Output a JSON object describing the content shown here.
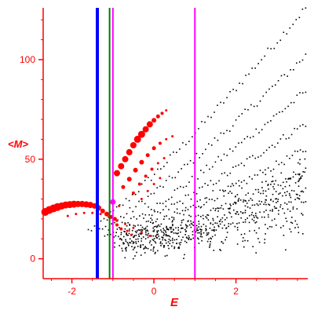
{
  "chart_data": {
    "type": "scatter",
    "title": "",
    "xlabel": "E",
    "ylabel": "<M>",
    "xlim": [
      -2.7,
      3.75
    ],
    "ylim": [
      -10,
      126
    ],
    "x_ticks": [
      -2,
      0,
      2
    ],
    "x_tick_labels": [
      "-2",
      "0",
      "2"
    ],
    "y_ticks": [
      0,
      50,
      100
    ],
    "y_tick_labels": [
      "0",
      "50",
      "100"
    ],
    "grid": false,
    "legend": "none",
    "colors": {
      "axis": "#ff0000",
      "points_black": "#000000",
      "points_red": "#ff0000",
      "line_blue": "#0000ff",
      "line_green": "#007a00",
      "line_magenta": "#ff00ff"
    },
    "vertical_lines": [
      {
        "x": -1.38,
        "color": "#0000ff",
        "width": "thick"
      },
      {
        "x": -1.08,
        "color": "#007a00",
        "width": "thin"
      },
      {
        "x": -1.0,
        "color": "#ff00ff",
        "width": "thin"
      },
      {
        "x": 1.0,
        "color": "#ff00ff",
        "width": "thin"
      }
    ],
    "marker_point": {
      "x": -1.0,
      "y": 28.5,
      "color": "#ff00ff"
    },
    "red_series": [
      {
        "x": -2.65,
        "y": 23.5,
        "s": 5
      },
      {
        "x": -2.55,
        "y": 24.5,
        "s": 5
      },
      {
        "x": -2.45,
        "y": 25.3,
        "s": 5
      },
      {
        "x": -2.35,
        "y": 26.0,
        "s": 5
      },
      {
        "x": -2.25,
        "y": 26.5,
        "s": 4.5
      },
      {
        "x": -2.15,
        "y": 27.0,
        "s": 4.5
      },
      {
        "x": -2.05,
        "y": 27.2,
        "s": 4.5
      },
      {
        "x": -1.95,
        "y": 27.4,
        "s": 4.5
      },
      {
        "x": -1.85,
        "y": 27.5,
        "s": 4
      },
      {
        "x": -1.75,
        "y": 27.5,
        "s": 4
      },
      {
        "x": -1.65,
        "y": 27.3,
        "s": 4
      },
      {
        "x": -1.55,
        "y": 27.0,
        "s": 4
      },
      {
        "x": -1.45,
        "y": 26.5,
        "s": 3.5
      },
      {
        "x": -1.35,
        "y": 25.5,
        "s": 3.5
      },
      {
        "x": -1.25,
        "y": 24.0,
        "s": 3
      },
      {
        "x": -1.15,
        "y": 22.5,
        "s": 3
      },
      {
        "x": -1.05,
        "y": 21.0,
        "s": 2.5
      },
      {
        "x": -0.95,
        "y": 20.0,
        "s": 2.5
      },
      {
        "x": -2.1,
        "y": 21.5,
        "s": 1.5
      },
      {
        "x": -1.9,
        "y": 22.5,
        "s": 1.5
      },
      {
        "x": -1.7,
        "y": 23.0,
        "s": 1.5
      },
      {
        "x": -1.5,
        "y": 23.0,
        "s": 1.5
      },
      {
        "x": -1.3,
        "y": 22.5,
        "s": 1.5
      },
      {
        "x": -1.1,
        "y": 21.0,
        "s": 1.5
      },
      {
        "x": -0.9,
        "y": 19.0,
        "s": 1.5
      },
      {
        "x": -0.7,
        "y": 17.5,
        "s": 1.5
      },
      {
        "x": -0.5,
        "y": 15.5,
        "s": 1.5
      },
      {
        "x": -0.3,
        "y": 13.5,
        "s": 1.5
      },
      {
        "x": -0.1,
        "y": 11.5,
        "s": 1.5
      },
      {
        "x": -0.9,
        "y": 43.0,
        "s": 4
      },
      {
        "x": -0.8,
        "y": 46.5,
        "s": 4
      },
      {
        "x": -0.7,
        "y": 50.0,
        "s": 4
      },
      {
        "x": -0.6,
        "y": 53.5,
        "s": 4
      },
      {
        "x": -0.5,
        "y": 57.0,
        "s": 4
      },
      {
        "x": -0.4,
        "y": 60.0,
        "s": 4.5
      },
      {
        "x": -0.3,
        "y": 62.5,
        "s": 4.5
      },
      {
        "x": -0.2,
        "y": 65.0,
        "s": 4
      },
      {
        "x": -0.1,
        "y": 67.5,
        "s": 4
      },
      {
        "x": 0.0,
        "y": 69.5,
        "s": 3
      },
      {
        "x": 0.1,
        "y": 71.5,
        "s": 2.5
      },
      {
        "x": 0.2,
        "y": 73.0,
        "s": 2
      },
      {
        "x": 0.3,
        "y": 74.5,
        "s": 1.5
      },
      {
        "x": -0.75,
        "y": 36.0,
        "s": 2.5
      },
      {
        "x": -0.6,
        "y": 40.0,
        "s": 3
      },
      {
        "x": -0.45,
        "y": 44.5,
        "s": 3
      },
      {
        "x": -0.3,
        "y": 48.5,
        "s": 3
      },
      {
        "x": -0.15,
        "y": 52.0,
        "s": 2.5
      },
      {
        "x": 0.0,
        "y": 55.5,
        "s": 2.5
      },
      {
        "x": 0.15,
        "y": 58.0,
        "s": 2
      },
      {
        "x": 0.3,
        "y": 60.0,
        "s": 1.5
      },
      {
        "x": 0.45,
        "y": 61.5,
        "s": 1.5
      },
      {
        "x": -0.5,
        "y": 33.0,
        "s": 2
      },
      {
        "x": -0.35,
        "y": 37.5,
        "s": 2
      },
      {
        "x": -0.2,
        "y": 41.5,
        "s": 2
      },
      {
        "x": -0.05,
        "y": 45.0,
        "s": 2
      },
      {
        "x": 0.1,
        "y": 48.0,
        "s": 1.5
      },
      {
        "x": 0.25,
        "y": 50.5,
        "s": 1.5
      },
      {
        "x": -0.3,
        "y": 30.0,
        "s": 1.5
      },
      {
        "x": -0.15,
        "y": 34.0,
        "s": 1.5
      },
      {
        "x": 0.0,
        "y": 37.5,
        "s": 1.5
      },
      {
        "x": 0.15,
        "y": 40.5,
        "s": 1.5
      },
      {
        "x": -0.85,
        "y": 26.5,
        "s": 1.5
      },
      {
        "x": -0.9,
        "y": 17.0,
        "s": 2
      },
      {
        "x": -0.8,
        "y": 15.0,
        "s": 2
      },
      {
        "x": -0.55,
        "y": 12.0,
        "s": 1.5
      },
      {
        "x": -0.65,
        "y": 14.0,
        "s": 1.5
      }
    ]
  }
}
